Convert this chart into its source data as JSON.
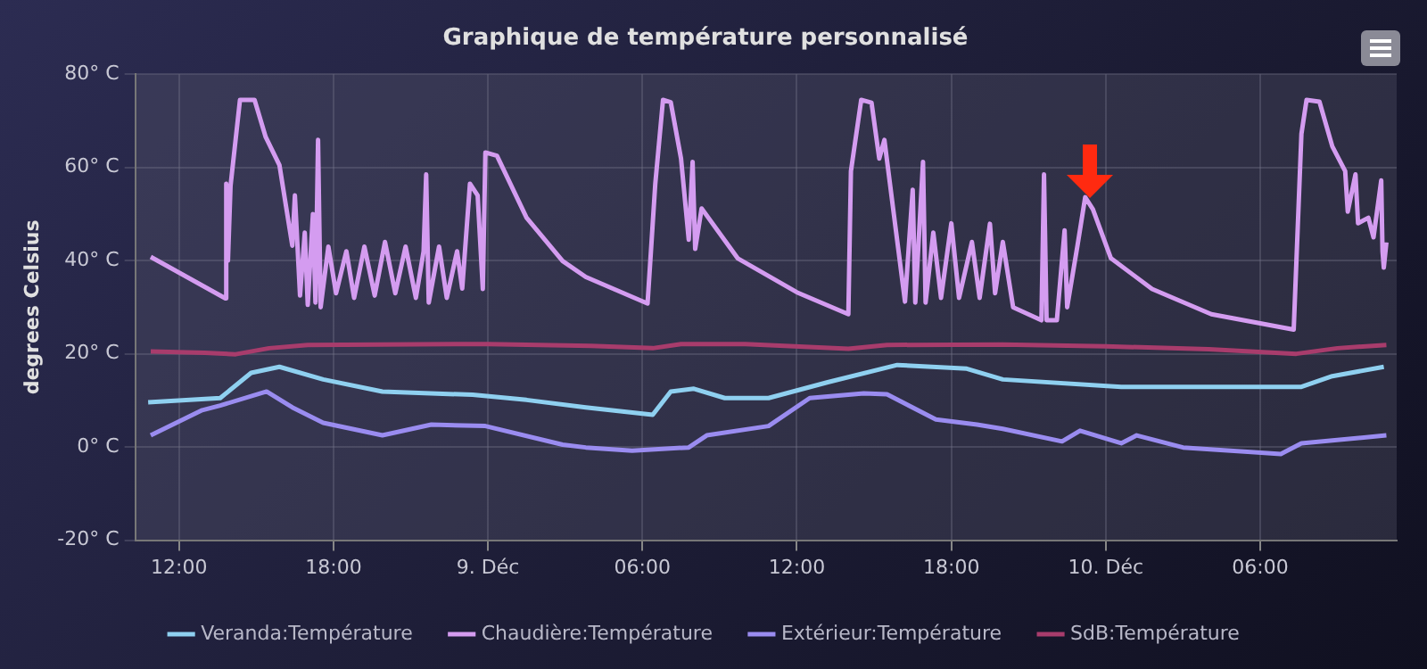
{
  "chart_data": {
    "type": "line",
    "title": "Graphique de température personnalisé",
    "ylabel": "degrees Celsius",
    "xlim": [
      "--12-08T10:18",
      "--12-10T11:18"
    ],
    "xticks": [
      {
        "value": "--12-08T12:00",
        "label": "12:00"
      },
      {
        "value": "--12-08T18:00",
        "label": "18:00"
      },
      {
        "value": "--12-09T00:00",
        "label": "9. Déc"
      },
      {
        "value": "--12-09T06:00",
        "label": "06:00"
      },
      {
        "value": "--12-09T12:00",
        "label": "12:00"
      },
      {
        "value": "--12-09T18:00",
        "label": "18:00"
      },
      {
        "value": "--12-10T00:00",
        "label": "10. Déc"
      },
      {
        "value": "--12-10T06:00",
        "label": "06:00"
      }
    ],
    "ylim": [
      -20,
      80
    ],
    "yticks": [
      {
        "value": -20,
        "label": "-20° C"
      },
      {
        "value": 0,
        "label": "0° C"
      },
      {
        "value": 20,
        "label": "20° C"
      },
      {
        "value": 40,
        "label": "40° C"
      },
      {
        "value": 60,
        "label": "60° C"
      },
      {
        "value": 80,
        "label": "80° C"
      }
    ],
    "grid": true,
    "legend": "bottom",
    "marker": "none",
    "line_style": "solid",
    "series": [
      {
        "name": "Veranda:Température",
        "color": "#8fd0f0",
        "x": [
          "--12-08T10:48",
          "--12-08T13:36",
          "--12-08T14:48",
          "--12-08T15:54",
          "--12-08T17:36",
          "--12-08T19:54",
          "--12-08T23:24",
          "--12-09T01:30",
          "--12-09T03:48",
          "--12-09T06:24",
          "--12-09T07:06",
          "--12-09T08:00",
          "--12-09T09:12",
          "--12-09T10:54",
          "--12-09T13:12",
          "--12-09T15:54",
          "--12-09T18:36",
          "--12-09T20:00",
          "--12-10T00:36",
          "--12-10T07:36",
          "--12-10T08:48",
          "--12-10T10:48"
        ],
        "values": [
          9.6,
          10.5,
          15.9,
          17.2,
          14.5,
          11.9,
          11.2,
          10.1,
          8.5,
          6.9,
          11.9,
          12.5,
          10.5,
          10.5,
          13.9,
          17.6,
          16.8,
          14.5,
          12.9,
          12.9,
          15.2,
          17.2
        ]
      },
      {
        "name": "Chaudière:Température",
        "color": "#d49cf0",
        "x": [
          "--12-08T10:54",
          "--12-08T13:48",
          "--12-08T13:50",
          "--12-08T13:54",
          "--12-08T14:00",
          "--12-08T14:22",
          "--12-08T14:56",
          "--12-08T15:22",
          "--12-08T15:54",
          "--12-08T16:24",
          "--12-08T16:30",
          "--12-08T16:42",
          "--12-08T16:53",
          "--12-08T17:00",
          "--12-08T17:12",
          "--12-08T17:18",
          "--12-08T17:24",
          "--12-08T17:30",
          "--12-08T17:48",
          "--12-08T18:06",
          "--12-08T18:30",
          "--12-08T18:48",
          "--12-08T19:12",
          "--12-08T19:36",
          "--12-08T20:00",
          "--12-08T20:24",
          "--12-08T20:48",
          "--12-08T21:12",
          "--12-08T21:30",
          "--12-08T21:36",
          "--12-08T21:42",
          "--12-08T22:06",
          "--12-08T22:24",
          "--12-08T22:48",
          "--12-08T23:00",
          "--12-08T23:18",
          "--12-08T23:36",
          "--12-08T23:48",
          "--12-08T23:54",
          "--12-09T00:21",
          "--12-09T01:30",
          "--12-09T02:54",
          "--12-09T03:48",
          "--12-09T06:12",
          "--12-09T06:30",
          "--12-09T06:48",
          "--12-09T07:06",
          "--12-09T07:30",
          "--12-09T07:48",
          "--12-09T07:57",
          "--12-09T08:03",
          "--12-09T08:18",
          "--12-09T09:42",
          "--12-09T12:00",
          "--12-09T14:00",
          "--12-09T14:06",
          "--12-09T14:30",
          "--12-09T14:54",
          "--12-09T15:12",
          "--12-09T15:24",
          "--12-09T15:48",
          "--12-09T16:12",
          "--12-09T16:30",
          "--12-09T16:36",
          "--12-09T16:54",
          "--12-09T17:00",
          "--12-09T17:18",
          "--12-09T17:36",
          "--12-09T18:00",
          "--12-09T18:18",
          "--12-09T18:48",
          "--12-09T19:06",
          "--12-09T19:30",
          "--12-09T19:42",
          "--12-09T20:00",
          "--12-09T20:24",
          "--12-09T21:30",
          "--12-09T21:36",
          "--12-09T21:42",
          "--12-09T22:06",
          "--12-09T22:24",
          "--12-09T22:30",
          "--12-09T22:54",
          "--12-09T23:12",
          "--12-09T23:30",
          "--12-10T00:12",
          "--12-10T01:48",
          "--12-10T04:06",
          "--12-10T07:18",
          "--12-10T07:36",
          "--12-10T07:48",
          "--12-10T08:18",
          "--12-10T08:48",
          "--12-10T09:18",
          "--12-10T09:24",
          "--12-10T09:42",
          "--12-10T09:48",
          "--12-10T10:12",
          "--12-10T10:24",
          "--12-10T10:42",
          "--12-10T10:45",
          "--12-10T10:48",
          "--12-10T10:54"
        ],
        "values": [
          40.8,
          31.9,
          56.5,
          40,
          56,
          74.5,
          74.5,
          66.5,
          60.5,
          43.2,
          54,
          32.5,
          46,
          30.5,
          50,
          31,
          65.9,
          30,
          43,
          33,
          42,
          32,
          43,
          32.5,
          44,
          33,
          43,
          32,
          42,
          58.5,
          31,
          43,
          32,
          42,
          34,
          56.5,
          54,
          33.9,
          63.2,
          62.5,
          49.2,
          39.9,
          36.5,
          30.8,
          56.5,
          74.5,
          74,
          61.9,
          44.5,
          61.2,
          42.5,
          51.2,
          40.5,
          33.2,
          28.5,
          59.2,
          74.5,
          73.9,
          61.9,
          65.9,
          48.5,
          31.2,
          55.2,
          31,
          61.2,
          31,
          46,
          32,
          48,
          32,
          44,
          32,
          47.9,
          33,
          44,
          30,
          27.2,
          58.5,
          27.2,
          27.2,
          46.5,
          30,
          43.2,
          53.6,
          51,
          40.5,
          33.9,
          28.5,
          25.2,
          67.2,
          74.5,
          74.1,
          64.5,
          59.2,
          50.5,
          58.5,
          48,
          49.2,
          45,
          57.2,
          42,
          38.5,
          43.9
        ]
      },
      {
        "name": "Extérieur:Température",
        "color": "#9a8cf0",
        "x": [
          "--12-08T10:54",
          "--12-08T12:54",
          "--12-08T13:36",
          "--12-08T15:24",
          "--12-08T16:24",
          "--12-08T17:36",
          "--12-08T19:54",
          "--12-08T21:48",
          "--12-08T23:54",
          "--12-09T02:54",
          "--12-09T03:48",
          "--12-09T05:36",
          "--12-09T07:48",
          "--12-09T08:30",
          "--12-09T10:54",
          "--12-09T12:30",
          "--12-09T14:36",
          "--12-09T15:30",
          "--12-09T17:24",
          "--12-09T19:00",
          "--12-09T20:00",
          "--12-09T22:18",
          "--12-09T23:00",
          "--12-10T00:36",
          "--12-10T01:12",
          "--12-10T03:00",
          "--12-10T06:48",
          "--12-10T07:36",
          "--12-10T10:54"
        ],
        "values": [
          2.5,
          7.9,
          8.9,
          11.9,
          8.5,
          5.2,
          2.5,
          4.8,
          4.5,
          0.5,
          -0.1,
          -0.8,
          -0.1,
          2.5,
          4.5,
          10.5,
          11.5,
          11.3,
          5.9,
          4.8,
          3.9,
          1.2,
          3.5,
          0.8,
          2.5,
          -0.1,
          -1.5,
          0.8,
          2.5
        ]
      },
      {
        "name": "SdB:Température",
        "color": "#a83c6c",
        "x": [
          "--12-08T10:54",
          "--12-08T13:00",
          "--12-08T14:12",
          "--12-08T15:30",
          "--12-08T17:00",
          "--12-09T00:00",
          "--12-09T04:00",
          "--12-09T06:24",
          "--12-09T07:30",
          "--12-09T10:00",
          "--12-09T14:00",
          "--12-09T15:30",
          "--12-09T20:00",
          "--12-10T00:00",
          "--12-10T04:00",
          "--12-10T07:24",
          "--12-10T09:00",
          "--12-10T10:54"
        ],
        "values": [
          20.5,
          20.2,
          19.9,
          21.2,
          21.9,
          22.1,
          21.7,
          21.2,
          22.1,
          22.1,
          21.1,
          21.9,
          22.0,
          21.6,
          21.0,
          20.0,
          21.2,
          21.9
        ]
      }
    ]
  }
}
